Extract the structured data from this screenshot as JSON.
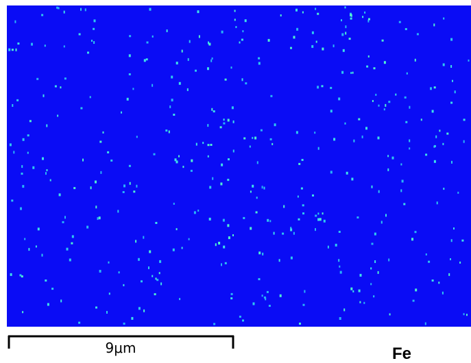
{
  "scale_bar": {
    "label": "9μm"
  },
  "element": "Fe"
}
